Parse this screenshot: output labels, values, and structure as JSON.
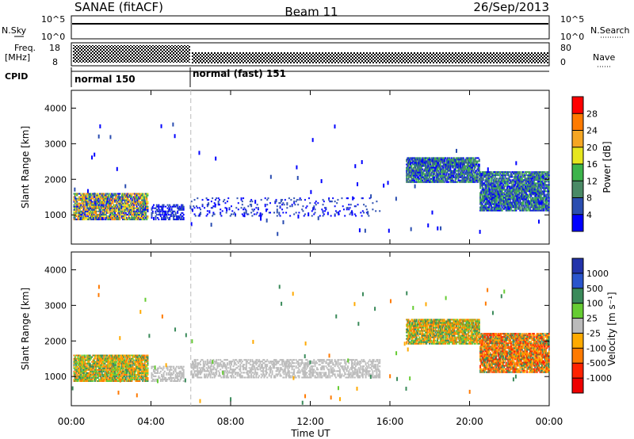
{
  "header": {
    "station": "SANAE (fitACF)",
    "beam": "Beam 11",
    "date": "26/Sep/2013"
  },
  "ancillary": {
    "nsky_label": "N.Sky",
    "nsky_ticks": [
      "10^5",
      "10^0"
    ],
    "nsearch_label": "N.Search",
    "nsearch_ticks": [
      "10^5",
      "10^0"
    ],
    "freq_label": "Freq.",
    "freq_unit": "[MHz]",
    "freq_ticks": [
      "18",
      "8"
    ],
    "nave_label": "Nave",
    "nave_ticks": [
      "80",
      "0"
    ],
    "cpid_label": "CPID",
    "cpid_segments": [
      {
        "label": "normal 150",
        "start_hour": 0,
        "end_hour": 6
      },
      {
        "label": "normal (fast) 151",
        "start_hour": 6,
        "end_hour": 24
      }
    ]
  },
  "chart_data": [
    {
      "type": "heatmap",
      "name": "power",
      "ylabel": "Slant Range [km]",
      "ylim": [
        180,
        4500
      ],
      "yticks": [
        "1000",
        "2000",
        "3000",
        "4000"
      ],
      "ytick_values": [
        1000,
        2000,
        3000,
        4000
      ],
      "colorbar": {
        "label": "Power [dB]",
        "range": [
          0,
          32
        ],
        "ticks": [
          "4",
          "8",
          "12",
          "16",
          "20",
          "24",
          "28"
        ],
        "colors": [
          "#0000ff",
          "#2a4db0",
          "#4a8a66",
          "#3cb44b",
          "#e6e61e",
          "#f5a623",
          "#ff7a00",
          "#ff0000"
        ]
      },
      "echo_regions": [
        {
          "t": [
            0.1,
            3.8
          ],
          "range": [
            850,
            1600
          ],
          "level": "strong"
        },
        {
          "t": [
            4.0,
            5.6
          ],
          "range": [
            850,
            1300
          ],
          "level": "weak"
        },
        {
          "t": [
            6.0,
            15.5
          ],
          "range": [
            950,
            1450
          ],
          "level": "scatter"
        },
        {
          "t": [
            16.8,
            20.5
          ],
          "range": [
            1900,
            2600
          ],
          "level": "medium"
        },
        {
          "t": [
            20.5,
            24.0
          ],
          "range": [
            1100,
            2200
          ],
          "level": "medium"
        }
      ]
    },
    {
      "type": "heatmap",
      "name": "velocity",
      "ylabel": "Slant Range [km]",
      "ylim": [
        180,
        4500
      ],
      "yticks": [
        "1000",
        "2000",
        "3000",
        "4000"
      ],
      "ytick_values": [
        1000,
        2000,
        3000,
        4000
      ],
      "colorbar": {
        "label": "Velocity [m s⁻¹]",
        "ticks": [
          "1000",
          "500",
          "100",
          "25",
          "-25",
          "-100",
          "-500",
          "-1000"
        ],
        "colors": [
          "#2233aa",
          "#2a55cc",
          "#3a8a5a",
          "#66cc33",
          "#bbbbbb",
          "#ffaa00",
          "#ff7a00",
          "#ff2200",
          "#ee0000"
        ]
      },
      "echo_regions": [
        {
          "t": [
            0.1,
            3.8
          ],
          "range": [
            850,
            1600
          ],
          "level": "toward"
        },
        {
          "t": [
            4.0,
            5.6
          ],
          "range": [
            850,
            1300
          ],
          "level": "ground"
        },
        {
          "t": [
            6.0,
            15.5
          ],
          "range": [
            950,
            1450
          ],
          "level": "ground"
        },
        {
          "t": [
            16.8,
            20.5
          ],
          "range": [
            1900,
            2600
          ],
          "level": "mixed"
        },
        {
          "t": [
            20.5,
            24.0
          ],
          "range": [
            1100,
            2200
          ],
          "level": "away"
        }
      ]
    }
  ],
  "xaxis": {
    "label": "Time UT",
    "ticks": [
      "00:00",
      "04:00",
      "08:00",
      "12:00",
      "16:00",
      "20:00",
      "00:00"
    ],
    "tick_hours": [
      0,
      4,
      8,
      12,
      16,
      20,
      24
    ],
    "range_hours": [
      0,
      24
    ]
  }
}
